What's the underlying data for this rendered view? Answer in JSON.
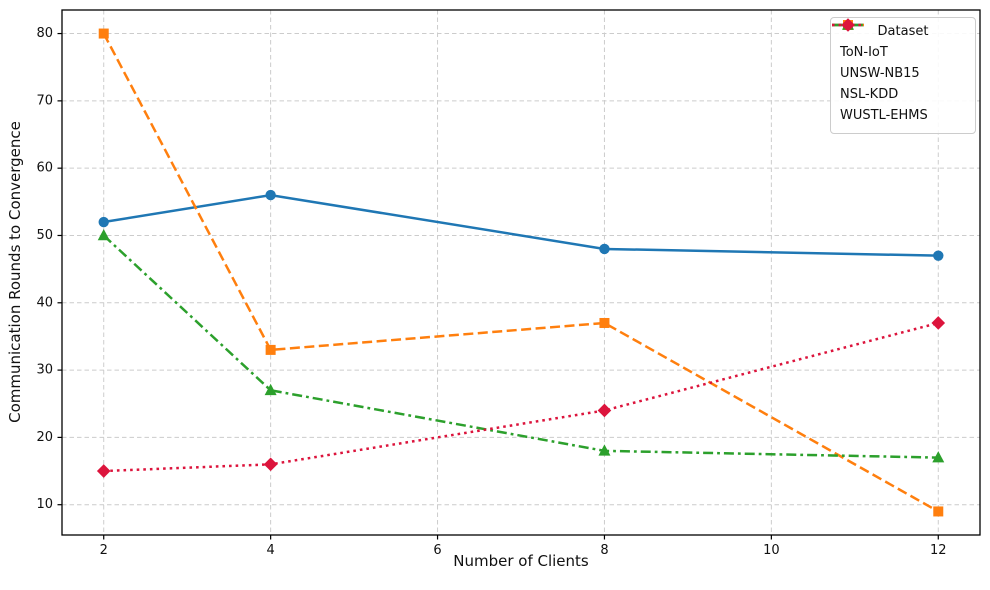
{
  "chart_data": {
    "type": "line",
    "title": "",
    "xlabel": "Number of Clients",
    "ylabel": "Communication Rounds to Convergence",
    "x": [
      2,
      4,
      8,
      12
    ],
    "series": [
      {
        "name": "ToN-IoT",
        "values": [
          52,
          56,
          48,
          47
        ],
        "color": "#1f77b4",
        "linestyle": "solid",
        "marker": "circle"
      },
      {
        "name": "UNSW-NB15",
        "values": [
          80,
          33,
          37,
          9
        ],
        "color": "#ff7f0e",
        "linestyle": "dashed",
        "marker": "square"
      },
      {
        "name": "NSL-KDD",
        "values": [
          50,
          27,
          18,
          17
        ],
        "color": "#2ca02c",
        "linestyle": "dashdot",
        "marker": "triangle"
      },
      {
        "name": "WUSTL-EHMS",
        "values": [
          15,
          16,
          24,
          37
        ],
        "color": "#dc143c",
        "linestyle": "dotted",
        "marker": "diamond"
      }
    ],
    "xticks": [
      2,
      4,
      6,
      8,
      10,
      12
    ],
    "yticks": [
      10,
      20,
      30,
      40,
      50,
      60,
      70,
      80
    ],
    "xlim": [
      1.5,
      12.5
    ],
    "ylim": [
      5.5,
      83.5
    ],
    "grid": true,
    "grid_color": "#cccccc",
    "spine_color": "#000000",
    "tick_label_color": "#111111",
    "legend": {
      "title": "Dataset",
      "position": "upper-right"
    }
  }
}
